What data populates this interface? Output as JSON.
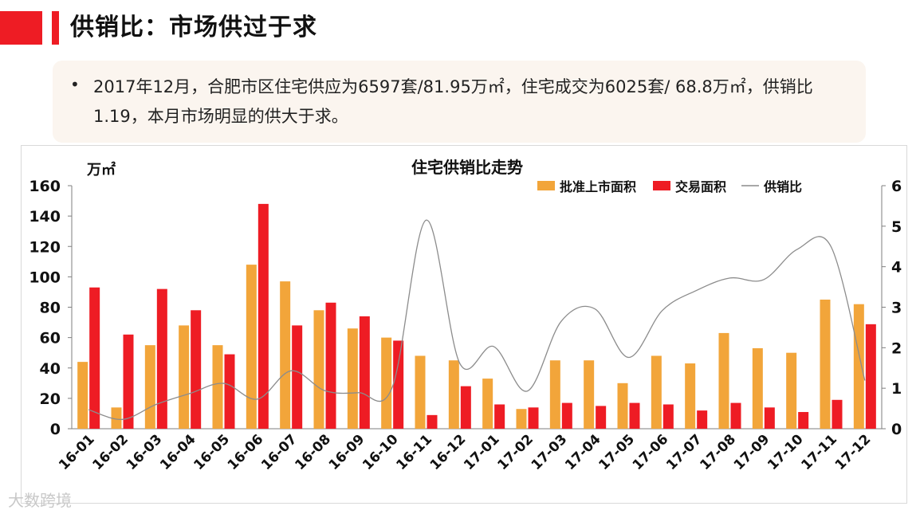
{
  "page": {
    "title": "供销比：市场供过于求",
    "summary_bullet": "•",
    "summary": "2017年12月，合肥市区住宅供应为6597套/81.95万㎡，住宅成交为6025套/ 68.8万㎡，供销比1.19，本月市场明显的供大于求。",
    "watermark": "大数跨境"
  },
  "colors": {
    "accent": "#ee1c24",
    "supply_bar": "#f2a53a",
    "trade_bar": "#ee1c24",
    "ratio_line": "#8c8c8c"
  },
  "chart_data": {
    "type": "bar",
    "title": "住宅供销比走势",
    "ylabel": "万㎡",
    "y2label": "",
    "categories": [
      "16-01",
      "16-02",
      "16-03",
      "16-04",
      "16-05",
      "16-06",
      "16-07",
      "16-08",
      "16-09",
      "16-10",
      "16-11",
      "16-12",
      "17-01",
      "17-02",
      "17-03",
      "17-04",
      "17-05",
      "17-06",
      "17-07",
      "17-08",
      "17-09",
      "17-10",
      "17-11",
      "17-12"
    ],
    "series": [
      {
        "name": "批准上市面积",
        "type": "bar",
        "axis": "left",
        "values": [
          44,
          14,
          55,
          68,
          55,
          108,
          97,
          78,
          66,
          60,
          48,
          45,
          33,
          13,
          45,
          45,
          30,
          48,
          43,
          63,
          53,
          50,
          85,
          82
        ]
      },
      {
        "name": "交易面积",
        "type": "bar",
        "axis": "left",
        "values": [
          93,
          62,
          92,
          78,
          49,
          148,
          68,
          83,
          74,
          58,
          9,
          28,
          16,
          14,
          17,
          15,
          17,
          16,
          12,
          17,
          14,
          11,
          19,
          68.8
        ]
      },
      {
        "name": "供销比",
        "type": "line",
        "axis": "right",
        "values": [
          0.47,
          0.23,
          0.6,
          0.87,
          1.12,
          0.73,
          1.43,
          0.94,
          0.89,
          1.03,
          5.15,
          1.61,
          2.03,
          0.93,
          2.65,
          2.96,
          1.76,
          2.92,
          3.41,
          3.72,
          3.68,
          4.43,
          4.49,
          1.19
        ]
      }
    ],
    "ylim": [
      0,
      160
    ],
    "yticks": [
      0,
      20,
      40,
      60,
      80,
      100,
      120,
      140,
      160
    ],
    "y2lim": [
      0,
      6
    ],
    "y2ticks": [
      0,
      1,
      2,
      3,
      4,
      5,
      6
    ],
    "legend_position": "top-right",
    "grid": false
  }
}
